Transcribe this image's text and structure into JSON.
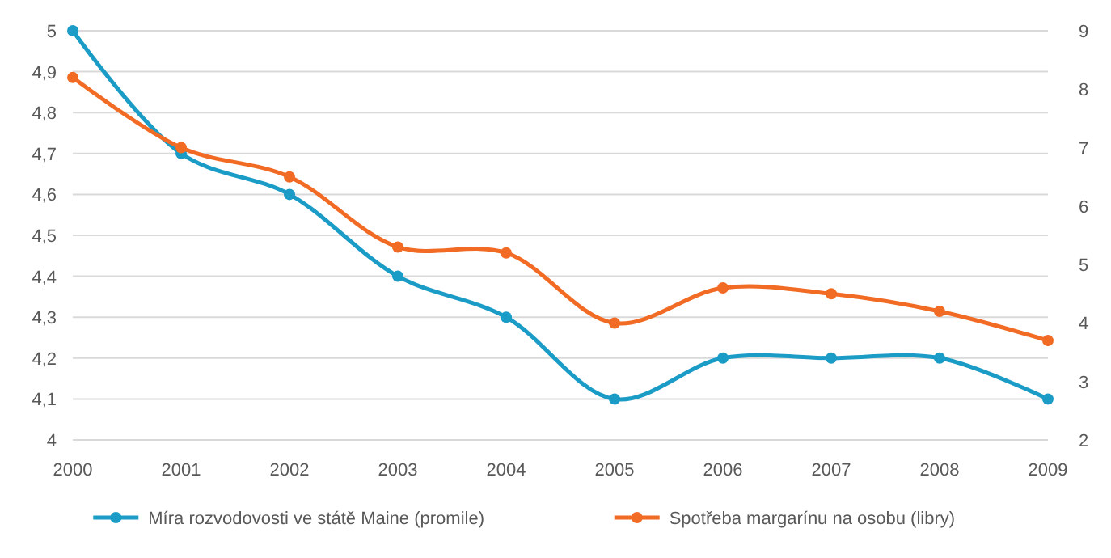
{
  "chart_data": {
    "type": "line",
    "categories": [
      "2000",
      "2001",
      "2002",
      "2003",
      "2004",
      "2005",
      "2006",
      "2007",
      "2008",
      "2009"
    ],
    "series": [
      {
        "name": "Míra rozvodovosti ve státě Maine (promile)",
        "color": "#1b9cc6",
        "values": [
          5,
          4.7,
          4.6,
          4.4,
          4.3,
          4.1,
          4.2,
          4.2,
          4.2,
          4.1
        ]
      },
      {
        "name": "Spotřeba margarínu na osobu (libry)",
        "color": "#f26b24",
        "axis": "y2",
        "values": [
          8.2,
          7,
          6.5,
          5.3,
          5.2,
          4,
          4.6,
          4.5,
          4.2,
          3.7
        ]
      }
    ],
    "ylim": [
      4,
      5
    ],
    "yticks": [
      4,
      {
        "value": 4.1,
        "label": "4,1"
      },
      {
        "value": 4.2,
        "label": "4,2"
      },
      {
        "value": 4.3,
        "label": "4,3"
      },
      {
        "value": 4.4,
        "label": "4,4"
      },
      {
        "value": 4.5,
        "label": "4,5"
      },
      {
        "value": 4.6,
        "label": "4,6"
      },
      {
        "value": 4.7,
        "label": "4,7"
      },
      {
        "value": 4.8,
        "label": "4,8"
      },
      {
        "value": 4.9,
        "label": "4,9"
      },
      5
    ],
    "y2lim": [
      2,
      9
    ],
    "y2ticks": [
      2,
      3,
      4,
      5,
      6,
      7,
      8,
      9
    ],
    "grid": "y",
    "legend": "bottom",
    "marker": "circle",
    "line_style": "solid"
  }
}
